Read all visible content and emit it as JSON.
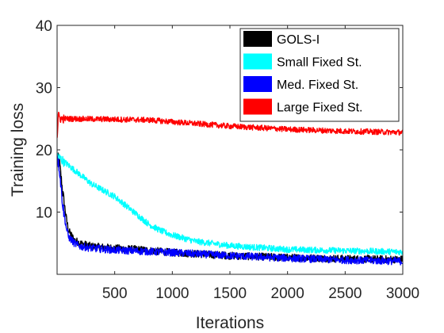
{
  "chart_data": {
    "type": "line",
    "xlabel": "Iterations",
    "ylabel": "Training loss",
    "xlim": [
      0,
      3000
    ],
    "ylim": [
      0,
      40
    ],
    "xticks": [
      500,
      1000,
      1500,
      2000,
      2500,
      3000
    ],
    "yticks": [
      10,
      20,
      30,
      40
    ],
    "grid": false,
    "legend_position": "top-right",
    "series": [
      {
        "name": "GOLS-I",
        "color": "#000000",
        "noise": 0.6,
        "x": [
          1,
          20,
          50,
          80,
          100,
          150,
          200,
          300,
          500,
          700,
          1000,
          1500,
          2000,
          2500,
          3000
        ],
        "y": [
          19,
          18,
          13,
          9,
          7,
          5.5,
          5,
          4.5,
          4.2,
          4.0,
          3.5,
          3.0,
          2.7,
          2.5,
          2.4
        ]
      },
      {
        "name": "Small Fixed St.",
        "color": "#00ffff",
        "noise": 0.5,
        "x": [
          1,
          100,
          200,
          300,
          400,
          500,
          600,
          700,
          800,
          900,
          1000,
          1200,
          1500,
          2000,
          2500,
          3000
        ],
        "y": [
          19,
          17.5,
          16,
          14.5,
          13.5,
          12.5,
          11,
          9.5,
          8,
          7,
          6.3,
          5.3,
          4.6,
          4.0,
          3.8,
          3.6
        ]
      },
      {
        "name": "Med. Fixed St.",
        "color": "#0000ff",
        "noise": 0.6,
        "x": [
          1,
          20,
          50,
          80,
          100,
          150,
          200,
          300,
          500,
          1000,
          1500,
          2000,
          2500,
          3000
        ],
        "y": [
          19,
          17,
          11,
          7.5,
          6,
          5,
          4.5,
          4.2,
          3.9,
          3.5,
          3.0,
          2.6,
          2.3,
          2.1
        ]
      },
      {
        "name": "Large Fixed St.",
        "color": "#ff0000",
        "noise": 0.45,
        "x": [
          1,
          10,
          30,
          100,
          500,
          800,
          1000,
          1500,
          2000,
          2500,
          3000
        ],
        "y": [
          22,
          25.5,
          25,
          25,
          24.9,
          24.8,
          24.5,
          23.8,
          23.3,
          23.0,
          22.8
        ]
      }
    ]
  }
}
